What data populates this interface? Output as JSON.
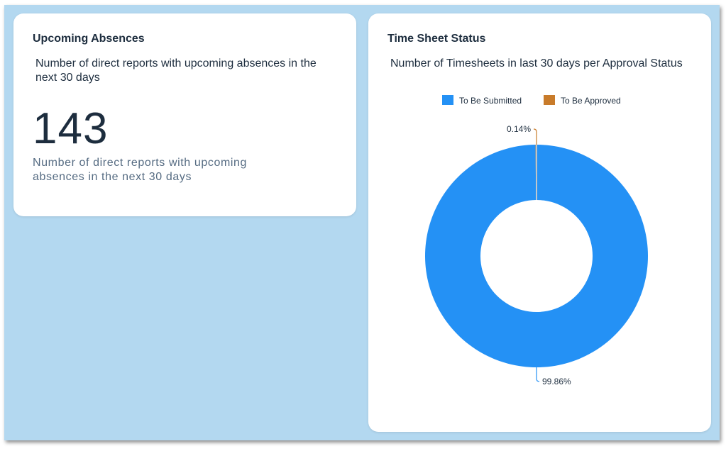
{
  "upcoming_absences": {
    "title": "Upcoming Absences",
    "subtitle": "Number of direct reports with upcoming absences in the next 30 days",
    "value": "143",
    "description": "Number of direct reports with upcoming absences in the next 30 days"
  },
  "time_sheet_status": {
    "title": "Time Sheet Status",
    "subtitle": "Number of Timesheets in last 30 days per Approval Status"
  },
  "chart_data": {
    "type": "pie",
    "donut": true,
    "series": [
      {
        "name": "To Be Submitted",
        "value": 99.86,
        "label": "99.86%",
        "color": "#2491f5"
      },
      {
        "name": "To Be Approved",
        "value": 0.14,
        "label": "0.14%",
        "color": "#c87b2a"
      }
    ],
    "legend_position": "top"
  }
}
